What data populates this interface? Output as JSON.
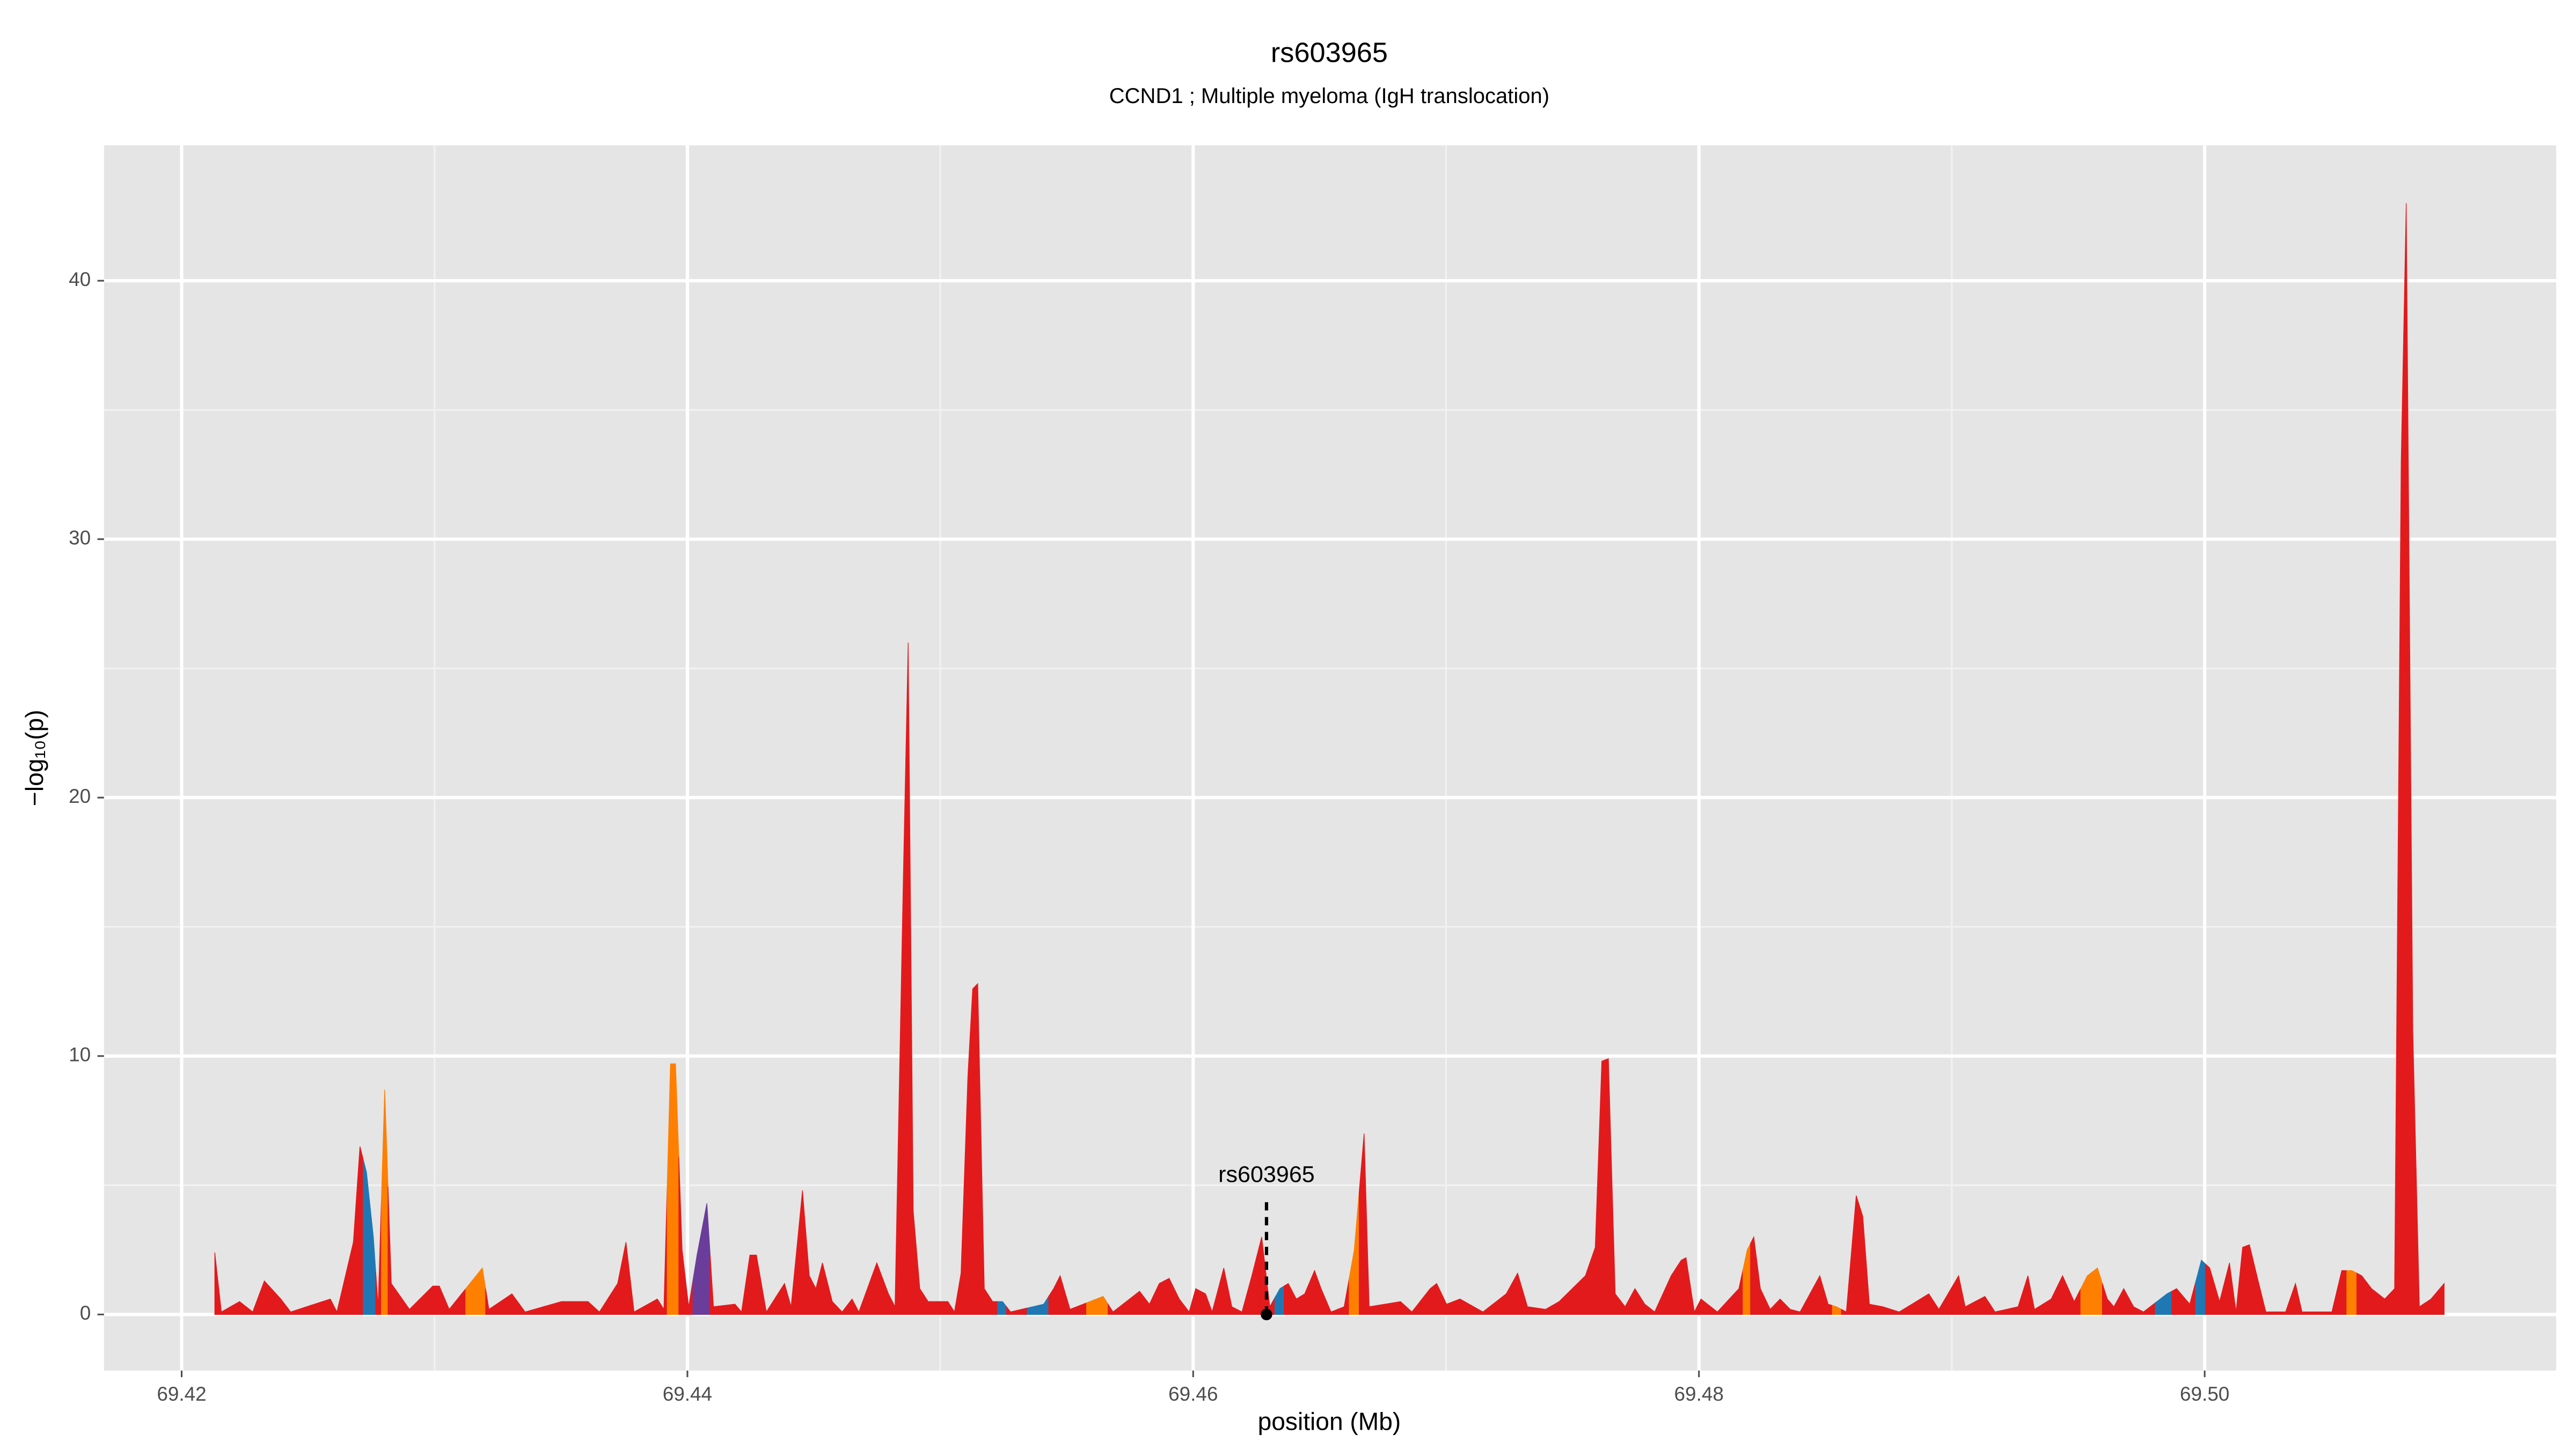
{
  "chart_data": {
    "type": "area",
    "title": "rs603965",
    "subtitle": "CCND1 ; Multiple myeloma (IgH translocation)",
    "x_label": "position (Mb)",
    "y_label": "−log₁₀(p)",
    "xlim": [
      69.41693,
      69.5139
    ],
    "ylim": [
      -2.17,
      45.24
    ],
    "xticks": [
      69.42,
      69.44,
      69.46,
      69.48,
      {
        "value": 69.5,
        "label": "69.50"
      }
    ],
    "yticks": [
      0,
      10,
      20,
      30,
      40
    ],
    "grid": true,
    "x": [
      69.42131,
      69.42157,
      69.42229,
      69.42281,
      69.42327,
      69.42392,
      69.42431,
      69.42588,
      69.42614,
      69.42679,
      69.42705,
      69.42731,
      69.42758,
      69.42777,
      69.42803,
      69.42829,
      69.42901,
      69.42993,
      69.43019,
      69.43058,
      69.43189,
      69.43215,
      69.43306,
      69.43358,
      69.43502,
      69.43607,
      69.43652,
      69.43724,
      69.43757,
      69.43789,
      69.43881,
      69.43907,
      69.43933,
      69.43953,
      69.43979,
      69.44005,
      69.44038,
      69.44077,
      69.44103,
      69.44188,
      69.44214,
      69.44247,
      69.44273,
      69.44312,
      69.44384,
      69.4441,
      69.44455,
      69.44482,
      69.44508,
      69.44534,
      69.44573,
      69.44612,
      69.44651,
      69.44678,
      69.44749,
      69.44795,
      69.44821,
      69.44854,
      69.44873,
      69.44893,
      69.44919,
      69.44952,
      69.4503,
      69.45056,
      69.45082,
      69.45109,
      69.45128,
      69.45148,
      69.45174,
      69.45207,
      69.45246,
      69.45278,
      69.45409,
      69.45448,
      69.45474,
      69.45513,
      69.45644,
      69.45683,
      69.45788,
      69.45827,
      69.45866,
      69.45905,
      69.45945,
      69.45984,
      69.4601,
      69.46049,
      69.46075,
      69.46121,
      69.46153,
      69.46193,
      69.46232,
      69.46271,
      69.46303,
      69.46343,
      69.46376,
      69.46408,
      69.46441,
      69.4648,
      69.46506,
      69.46545,
      69.46597,
      69.46637,
      69.46676,
      69.46696,
      69.4682,
      69.46865,
      69.46937,
      69.46963,
      69.47002,
      69.47055,
      69.47146,
      69.47238,
      69.47283,
      69.47322,
      69.47394,
      69.47447,
      69.47551,
      69.4759,
      69.47616,
      69.47642,
      69.47669,
      69.47708,
      69.47747,
      69.47786,
      69.47825,
      69.4789,
      69.4793,
      69.47949,
      69.47982,
      69.48008,
      69.48073,
      69.48158,
      69.48191,
      69.48217,
      69.48243,
      69.48282,
      69.48321,
      69.48361,
      69.484,
      69.48478,
      69.48511,
      69.48544,
      69.48583,
      69.48622,
      69.48648,
      69.48674,
      69.48727,
      69.48792,
      69.48909,
      69.48949,
      69.49027,
      69.49053,
      69.49131,
      69.49171,
      69.49262,
      69.49301,
      69.49327,
      69.49393,
      69.49438,
      69.49484,
      69.49536,
      69.49576,
      69.49615,
      69.49641,
      69.4968,
      69.49719,
      69.49758,
      69.49851,
      69.49889,
      69.49941,
      69.49987,
      69.5002,
      69.50059,
      69.50098,
      69.50124,
      69.5015,
      69.50177,
      69.50209,
      69.50242,
      69.5032,
      69.50359,
      69.50385,
      69.50503,
      69.50542,
      69.50582,
      69.50621,
      69.5066,
      69.50712,
      69.50751,
      69.50777,
      69.50797,
      69.50823,
      69.50849,
      69.50895,
      69.50947
    ],
    "values": [
      2.4,
      0.1,
      0.5,
      0.1,
      1.3,
      0.6,
      0.1,
      0.6,
      0.1,
      2.8,
      6.5,
      5.5,
      3.0,
      0.3,
      8.7,
      1.2,
      0.2,
      1.1,
      1.1,
      0.2,
      1.8,
      0.2,
      0.8,
      0.1,
      0.5,
      0.5,
      0.1,
      1.2,
      2.8,
      0.1,
      0.6,
      0.2,
      9.7,
      9.7,
      2.5,
      0.3,
      2.3,
      4.3,
      0.3,
      0.4,
      0.1,
      2.3,
      2.3,
      0.1,
      1.2,
      0.3,
      4.8,
      1.5,
      1.0,
      2.0,
      0.5,
      0.1,
      0.6,
      0.1,
      2.0,
      0.8,
      0.3,
      17,
      26,
      4,
      1.0,
      0.5,
      0.5,
      0.1,
      1.6,
      9.2,
      12.6,
      12.8,
      1.0,
      0.5,
      0.5,
      0.1,
      0.4,
      1.0,
      1.5,
      0.2,
      0.7,
      0.1,
      0.9,
      0.4,
      1.2,
      1.4,
      0.6,
      0.1,
      1.0,
      0.8,
      0.1,
      1.8,
      0.3,
      0.1,
      1.5,
      3.0,
      0.3,
      1.0,
      1.2,
      0.6,
      0.8,
      1.7,
      1.0,
      0.1,
      0.3,
      2.5,
      7.0,
      0.3,
      0.5,
      0.1,
      1.0,
      1.2,
      0.4,
      0.6,
      0.1,
      0.8,
      1.6,
      0.3,
      0.2,
      0.5,
      1.5,
      2.6,
      9.8,
      9.9,
      0.8,
      0.3,
      1.0,
      0.4,
      0.1,
      1.5,
      2.1,
      2.2,
      0.1,
      0.6,
      0.1,
      1.0,
      2.5,
      3.0,
      1.0,
      0.2,
      0.6,
      0.2,
      0.1,
      1.5,
      0.4,
      0.3,
      0.1,
      4.6,
      3.8,
      0.4,
      0.3,
      0.1,
      0.8,
      0.2,
      1.5,
      0.3,
      0.7,
      0.1,
      0.3,
      1.5,
      0.2,
      0.6,
      1.5,
      0.5,
      1.5,
      1.8,
      0.6,
      0.3,
      1.0,
      0.3,
      0.1,
      0.8,
      1.0,
      0.4,
      2.1,
      1.8,
      0.5,
      2.0,
      0.1,
      2.6,
      2.7,
      1.4,
      0.1,
      0.1,
      1.2,
      0.1,
      0.1,
      1.7,
      1.7,
      1.5,
      1.0,
      0.6,
      1.0,
      33,
      43,
      11,
      0.3,
      0.6,
      1.2
    ],
    "colors": [
      "#e31a1c",
      "#e31a1c",
      "#e31a1c",
      "#e31a1c",
      "#e31a1c",
      "#e31a1c",
      "#e31a1c",
      "#e31a1c",
      "#e31a1c",
      "#e31a1c",
      "#e31a1c",
      "#1f78b4",
      "#1f78b4",
      "#e31a1c",
      "#ff7f00",
      "#e31a1c",
      "#e31a1c",
      "#e31a1c",
      "#e31a1c",
      "#e31a1c",
      "#ff7f00",
      "#e31a1c",
      "#e31a1c",
      "#e31a1c",
      "#e31a1c",
      "#e31a1c",
      "#e31a1c",
      "#e31a1c",
      "#e31a1c",
      "#e31a1c",
      "#e31a1c",
      "#e31a1c",
      "#ff7f00",
      "#ff7f00",
      "#e31a1c",
      "#e31a1c",
      "#6a3d9a",
      "#6a3d9a",
      "#e31a1c",
      "#e31a1c",
      "#e31a1c",
      "#e31a1c",
      "#e31a1c",
      "#e31a1c",
      "#e31a1c",
      "#e31a1c",
      "#e31a1c",
      "#e31a1c",
      "#e31a1c",
      "#e31a1c",
      "#e31a1c",
      "#e31a1c",
      "#e31a1c",
      "#e31a1c",
      "#e31a1c",
      "#e31a1c",
      "#e31a1c",
      "#e31a1c",
      "#e31a1c",
      "#e31a1c",
      "#e31a1c",
      "#e31a1c",
      "#e31a1c",
      "#e31a1c",
      "#e31a1c",
      "#e31a1c",
      "#e31a1c",
      "#e31a1c",
      "#e31a1c",
      "#e31a1c",
      "#1f78b4",
      "#e31a1c",
      "#1f78b4",
      "#e31a1c",
      "#e31a1c",
      "#e31a1c",
      "#ff7f00",
      "#e31a1c",
      "#e31a1c",
      "#e31a1c",
      "#e31a1c",
      "#e31a1c",
      "#e31a1c",
      "#e31a1c",
      "#e31a1c",
      "#e31a1c",
      "#e31a1c",
      "#e31a1c",
      "#e31a1c",
      "#e31a1c",
      "#e31a1c",
      "#e31a1c",
      "#e31a1c",
      "#1f78b4",
      "#e31a1c",
      "#e31a1c",
      "#e31a1c",
      "#e31a1c",
      "#e31a1c",
      "#e31a1c",
      "#e31a1c",
      "#ff7f00",
      "#e31a1c",
      "#e31a1c",
      "#e31a1c",
      "#e31a1c",
      "#e31a1c",
      "#e31a1c",
      "#e31a1c",
      "#e31a1c",
      "#e31a1c",
      "#e31a1c",
      "#e31a1c",
      "#e31a1c",
      "#e31a1c",
      "#e31a1c",
      "#e31a1c",
      "#e31a1c",
      "#e31a1c",
      "#e31a1c",
      "#e31a1c",
      "#e31a1c",
      "#e31a1c",
      "#e31a1c",
      "#e31a1c",
      "#e31a1c",
      "#e31a1c",
      "#e31a1c",
      "#e31a1c",
      "#e31a1c",
      "#e31a1c",
      "#e31a1c",
      "#ff7f00",
      "#e31a1c",
      "#e31a1c",
      "#e31a1c",
      "#e31a1c",
      "#e31a1c",
      "#e31a1c",
      "#e31a1c",
      "#e31a1c",
      "#ff7f00",
      "#e31a1c",
      "#e31a1c",
      "#e31a1c",
      "#e31a1c",
      "#e31a1c",
      "#e31a1c",
      "#e31a1c",
      "#e31a1c",
      "#e31a1c",
      "#e31a1c",
      "#e31a1c",
      "#e31a1c",
      "#e31a1c",
      "#e31a1c",
      "#e31a1c",
      "#e31a1c",
      "#e31a1c",
      "#e31a1c",
      "#ff7f00",
      "#ff7f00",
      "#e31a1c",
      "#e31a1c",
      "#e31a1c",
      "#e31a1c",
      "#e31a1c",
      "#1f78b4",
      "#e31a1c",
      "#e31a1c",
      "#1f78b4",
      "#e31a1c",
      "#e31a1c",
      "#e31a1c",
      "#e31a1c",
      "#e31a1c",
      "#e31a1c",
      "#e31a1c",
      "#e31a1c",
      "#e31a1c",
      "#e31a1c",
      "#e31a1c",
      "#e31a1c",
      "#e31a1c",
      "#ff7f00",
      "#e31a1c",
      "#e31a1c",
      "#e31a1c",
      "#e31a1c",
      "#e31a1c",
      "#e31a1c",
      "#e31a1c",
      "#e31a1c",
      "#e31a1c",
      "#e31a1c",
      "#e31a1c"
    ],
    "annotation": {
      "label": "rs603965",
      "x": 69.4629,
      "y": 0
    }
  }
}
